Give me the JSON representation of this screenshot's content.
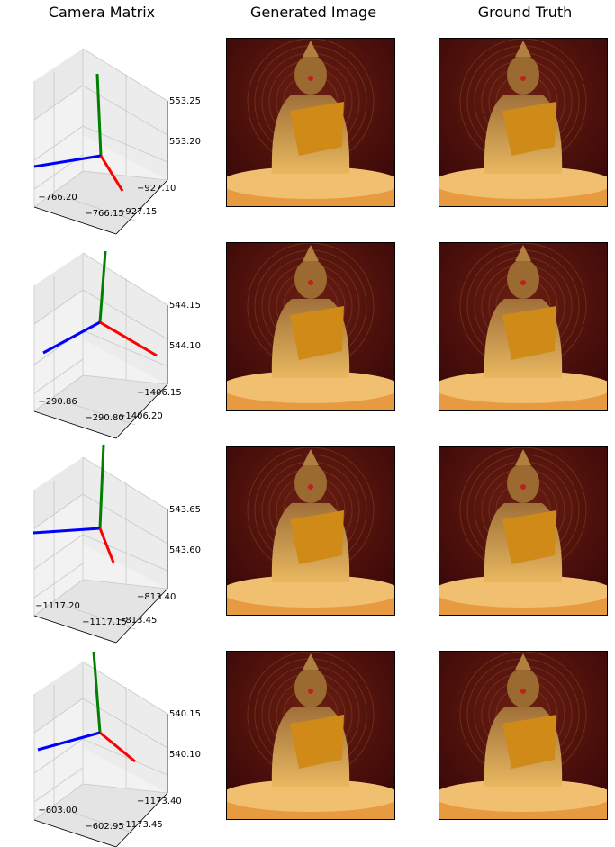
{
  "titles": {
    "camera": "Camera Matrix",
    "generated": "Generated Image",
    "truth": "Ground Truth"
  },
  "colors": {
    "axis_x": "#ff0000",
    "axis_y": "#008000",
    "axis_z": "#0000ff",
    "pane": "#f2f2f2",
    "grid": "#c8c8c8"
  },
  "chart_data": [
    {
      "type": "3d-camera-axes",
      "rows": 4,
      "panels": [
        {
          "x_ticks": [
            "−766.20",
            "−766.15"
          ],
          "y_ticks": [
            "−927.10",
            "−927.15"
          ],
          "z_ticks": [
            "553.25",
            "553.20"
          ]
        },
        {
          "x_ticks": [
            "−290.86",
            "−290.80"
          ],
          "y_ticks": [
            "−1406.15",
            "−1406.20"
          ],
          "z_ticks": [
            "544.15",
            "544.10"
          ]
        },
        {
          "x_ticks": [
            "−1117.20",
            "−1117.15"
          ],
          "y_ticks": [
            "−813.40",
            "−813.45"
          ],
          "z_ticks": [
            "543.65",
            "543.60"
          ]
        },
        {
          "x_ticks": [
            "−603.00",
            "−602.95"
          ],
          "y_ticks": [
            "−1173.40",
            "−1173.45"
          ],
          "z_ticks": [
            "540.15",
            "540.10"
          ]
        }
      ]
    }
  ],
  "images": {
    "row_count": 4,
    "subject": "golden-buddha-statue"
  }
}
